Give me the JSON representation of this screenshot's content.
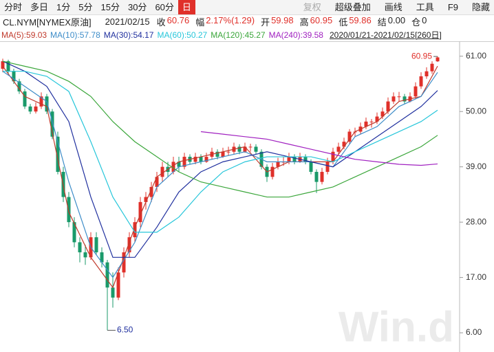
{
  "toolbar": {
    "tabs": [
      "分时",
      "多日",
      "1分",
      "5分",
      "15分",
      "30分",
      "60分",
      "日"
    ],
    "active_tab": "日",
    "tools": [
      "复权",
      "超级叠加",
      "画线",
      "工具",
      "F9",
      "隐藏"
    ],
    "disabled_tool": "复权"
  },
  "header": {
    "symbol": "CL.NYM[NYMEX原油]",
    "date": "2021/02/15",
    "items": [
      {
        "label": "收",
        "value": "60.76",
        "color": "#e0302a"
      },
      {
        "label": "幅",
        "value": "2.17%(1.29)",
        "color": "#e0302a"
      },
      {
        "label": "开",
        "value": "59.98",
        "color": "#e0302a"
      },
      {
        "label": "高",
        "value": "60.95",
        "color": "#e0302a"
      },
      {
        "label": "低",
        "value": "59.86",
        "color": "#e0302a"
      },
      {
        "label": "结",
        "value": "0.00",
        "color": "#222"
      },
      {
        "label": "仓",
        "value": "0",
        "color": "#222"
      }
    ],
    "range": "2020/01/21-2021/02/15[260日]"
  },
  "watermark": "Win.d",
  "chart_data": {
    "type": "candlestick",
    "up_color": "#e0302a",
    "down_color": "#1a9a6a",
    "ylim": [
      3,
      63.7
    ],
    "yticks": [
      {
        "value": 61,
        "label": "61.00"
      },
      {
        "value": 50,
        "label": "50.00"
      },
      {
        "value": 39,
        "label": "39.00"
      },
      {
        "value": 28,
        "label": "28.00"
      },
      {
        "value": 17,
        "label": "17.00"
      },
      {
        "value": 6,
        "label": "6.00"
      }
    ],
    "grid": false,
    "candles": [
      [
        58.5,
        60.5,
        57.8,
        60
      ],
      [
        60,
        60.3,
        57.5,
        58
      ],
      [
        58,
        58.5,
        55.5,
        56
      ],
      [
        56,
        56.5,
        53.5,
        54
      ],
      [
        54,
        54.5,
        50.5,
        51
      ],
      [
        51,
        51.5,
        49.5,
        50
      ],
      [
        50,
        51.8,
        49.6,
        51
      ],
      [
        51,
        53.8,
        50.5,
        53
      ],
      [
        53,
        53.5,
        49.5,
        50
      ],
      [
        50,
        50.5,
        44.5,
        45
      ],
      [
        45,
        46,
        37.5,
        38
      ],
      [
        38,
        39,
        32,
        33
      ],
      [
        33,
        34,
        27,
        28
      ],
      [
        28,
        29,
        23,
        24
      ],
      [
        24,
        25,
        20,
        22
      ],
      [
        22,
        23.5,
        19.5,
        21
      ],
      [
        21,
        26,
        20.5,
        25
      ],
      [
        25,
        26,
        21.5,
        22
      ],
      [
        22,
        23,
        19,
        20
      ],
      [
        20,
        20.5,
        6.5,
        15
      ],
      [
        15,
        18,
        11,
        13
      ],
      [
        13,
        19,
        12.5,
        18
      ],
      [
        18,
        23,
        17,
        22
      ],
      [
        22,
        26,
        21,
        25
      ],
      [
        25,
        29,
        24,
        28
      ],
      [
        28,
        33,
        27,
        32
      ],
      [
        32,
        34,
        30.5,
        33
      ],
      [
        33,
        36,
        32,
        35
      ],
      [
        35,
        38,
        34,
        37
      ],
      [
        37,
        40,
        36,
        39
      ],
      [
        39,
        40,
        37,
        38
      ],
      [
        38,
        41,
        37.5,
        40
      ],
      [
        40,
        41,
        38,
        39
      ],
      [
        39,
        41.8,
        38.5,
        41
      ],
      [
        41,
        41.5,
        39.5,
        40
      ],
      [
        40,
        41.8,
        39.5,
        41
      ],
      [
        41,
        41.5,
        39.5,
        40
      ],
      [
        40,
        41.8,
        39.8,
        41
      ],
      [
        41,
        42.8,
        40.5,
        42
      ],
      [
        42,
        42.5,
        40.5,
        41
      ],
      [
        41,
        42.8,
        40.8,
        42
      ],
      [
        42,
        43,
        41.2,
        42
      ],
      [
        42,
        43.8,
        41.5,
        43
      ],
      [
        43,
        43.5,
        41.5,
        42
      ],
      [
        42,
        43.8,
        41.8,
        43
      ],
      [
        43,
        43.6,
        42,
        43
      ],
      [
        43,
        43.5,
        41.5,
        42
      ],
      [
        42,
        42.5,
        38.5,
        39
      ],
      [
        39,
        39.5,
        36,
        37
      ],
      [
        37,
        39.8,
        36.5,
        39
      ],
      [
        39,
        40.8,
        38.5,
        40
      ],
      [
        40,
        41,
        39.2,
        40
      ],
      [
        40,
        41.8,
        39.5,
        41
      ],
      [
        41,
        41.5,
        39.5,
        40
      ],
      [
        40,
        41.8,
        39.8,
        41
      ],
      [
        41,
        41.5,
        39.5,
        40
      ],
      [
        40,
        40.5,
        37.5,
        38
      ],
      [
        38,
        38.5,
        33.8,
        36
      ],
      [
        36,
        38.8,
        35.5,
        38
      ],
      [
        38,
        40.8,
        37.5,
        40
      ],
      [
        40,
        42.8,
        39.5,
        42
      ],
      [
        42,
        43.8,
        41.5,
        43
      ],
      [
        43,
        44.8,
        42.5,
        44
      ],
      [
        44,
        46.5,
        43.5,
        46
      ],
      [
        46,
        46.8,
        45,
        46
      ],
      [
        46,
        47.8,
        45.5,
        47
      ],
      [
        47,
        48.8,
        46.5,
        48
      ],
      [
        48,
        48.5,
        46.8,
        48
      ],
      [
        48,
        49.8,
        47.5,
        49
      ],
      [
        49,
        50.8,
        48.5,
        50
      ],
      [
        50,
        52.8,
        49.5,
        52
      ],
      [
        52,
        53.8,
        51.5,
        53
      ],
      [
        53,
        53.9,
        52,
        53
      ],
      [
        53,
        53.5,
        51.5,
        52
      ],
      [
        52,
        53.8,
        51.8,
        53
      ],
      [
        53,
        55.8,
        52.5,
        55
      ],
      [
        55,
        57.8,
        54.5,
        57
      ],
      [
        57,
        58.8,
        56.5,
        58
      ],
      [
        58,
        60,
        57.5,
        59.5
      ],
      [
        59.98,
        60.95,
        59.86,
        60.76
      ]
    ],
    "ma_x": [
      0,
      4,
      8,
      12,
      16,
      20,
      24,
      28,
      32,
      36,
      40,
      44,
      48,
      52,
      56,
      60,
      64,
      68,
      72,
      76,
      79
    ],
    "series": [
      {
        "name": "MA(5)",
        "color": "#c0392b",
        "values": [
          59,
          53,
          51,
          30,
          21,
          15,
          27,
          37,
          40,
          41,
          42,
          43,
          38,
          40,
          40,
          40,
          46,
          48,
          52,
          53,
          59.03
        ]
      },
      {
        "name": "MA(10)",
        "color": "#3c8cc8",
        "values": [
          58,
          55,
          52,
          36,
          23,
          17,
          24,
          35,
          39,
          40,
          41,
          42,
          40,
          40,
          40,
          39,
          45,
          47,
          51,
          53,
          57.78
        ]
      },
      {
        "name": "MA(30)",
        "color": "#1f2f9e",
        "values": [
          60,
          58,
          55,
          48,
          33,
          21,
          21,
          27,
          34,
          38,
          40,
          41,
          42,
          41,
          40,
          39,
          42,
          45,
          48,
          51,
          54.17
        ]
      },
      {
        "name": "MA(60)",
        "color": "#26c6da",
        "values": [
          58,
          58,
          57,
          54,
          44,
          33,
          26,
          26,
          29,
          34,
          38,
          40,
          41,
          41,
          41,
          40,
          42,
          44,
          46,
          48,
          50.27
        ]
      },
      {
        "name": "MA(120)",
        "color": "#3aa63a",
        "values": [
          60,
          59,
          58,
          56,
          53,
          48,
          44,
          41,
          38,
          36,
          35,
          34,
          33,
          33,
          34,
          35,
          37,
          39,
          41,
          43,
          45.27
        ]
      },
      {
        "name": "MA(240)",
        "color": "#a020c0",
        "values": [
          null,
          null,
          null,
          null,
          null,
          null,
          null,
          null,
          null,
          46,
          45.5,
          45,
          44.5,
          43.5,
          42.5,
          41.5,
          40.5,
          40,
          39.5,
          39.3,
          39.58
        ]
      }
    ],
    "annotations": [
      {
        "index": 79,
        "value": 60.95,
        "label": "60.95",
        "side": "left"
      },
      {
        "index": 19,
        "value": 6.5,
        "label": "6.50",
        "side": "right"
      }
    ]
  }
}
